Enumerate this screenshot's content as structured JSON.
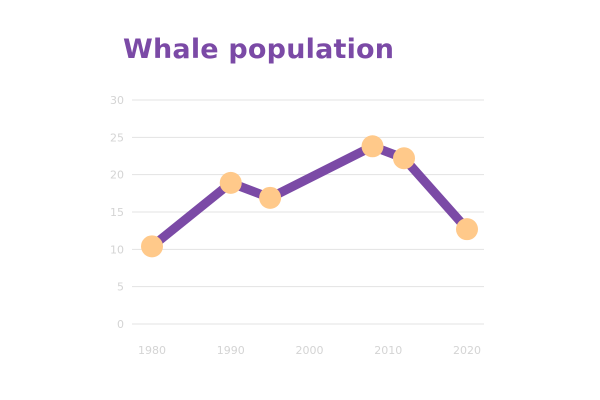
{
  "chart_data": {
    "type": "line",
    "title": "Whale population",
    "xlabel": "",
    "ylabel": "",
    "x": [
      1980,
      1990,
      1995,
      2008,
      2012,
      2020
    ],
    "series": [
      {
        "values": [
          10.4,
          18.9,
          16.9,
          23.8,
          22.2,
          12.7
        ]
      }
    ],
    "xticks": [
      1980,
      1990,
      2000,
      2010,
      2020
    ],
    "yticks": [
      0,
      5,
      10,
      15,
      20,
      25,
      30
    ],
    "xlim": [
      1980,
      2020
    ],
    "ylim": [
      0,
      30
    ],
    "grid": "horizontal",
    "legend": "none",
    "colors": {
      "line": "#7b4aa6",
      "marker": "#ffc98a",
      "title": "#7b4aa6",
      "grid": "#e3e3e3",
      "tick": "#d4d4d4"
    }
  }
}
